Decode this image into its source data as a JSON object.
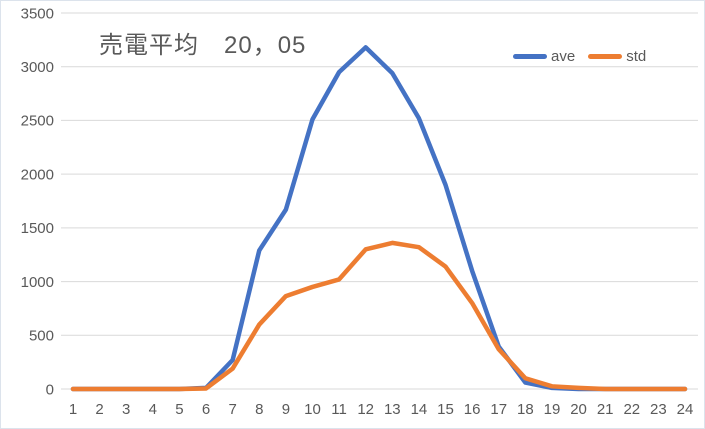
{
  "chart": {
    "title": "売電平均　20，05"
  },
  "chart_data": {
    "type": "line",
    "title": "売電平均　20，05",
    "categories": [
      1,
      2,
      3,
      4,
      5,
      6,
      7,
      8,
      9,
      10,
      11,
      12,
      13,
      14,
      15,
      16,
      17,
      18,
      19,
      20,
      21,
      22,
      23,
      24
    ],
    "series": [
      {
        "name": "ave",
        "color": "#4472C4",
        "values": [
          0,
          0,
          0,
          0,
          0,
          10,
          270,
          1290,
          1670,
          2510,
          2950,
          3180,
          2940,
          2520,
          1900,
          1100,
          395,
          60,
          10,
          0,
          0,
          0,
          0,
          0
        ]
      },
      {
        "name": "std",
        "color": "#ED7D31",
        "values": [
          0,
          0,
          0,
          0,
          0,
          5,
          190,
          600,
          865,
          950,
          1020,
          1300,
          1360,
          1320,
          1140,
          800,
          370,
          100,
          25,
          10,
          0,
          0,
          0,
          0
        ]
      }
    ],
    "ylim": [
      0,
      3500
    ],
    "yticks": [
      0,
      500,
      1000,
      1500,
      2000,
      2500,
      3000,
      3500
    ],
    "xlabel": "",
    "ylabel": "",
    "grid": "horizontal",
    "gridline_color": "#D9D9D9",
    "label_color": "#595959",
    "legend_position": "top-right",
    "legend_entries": [
      "ave",
      "std"
    ]
  }
}
